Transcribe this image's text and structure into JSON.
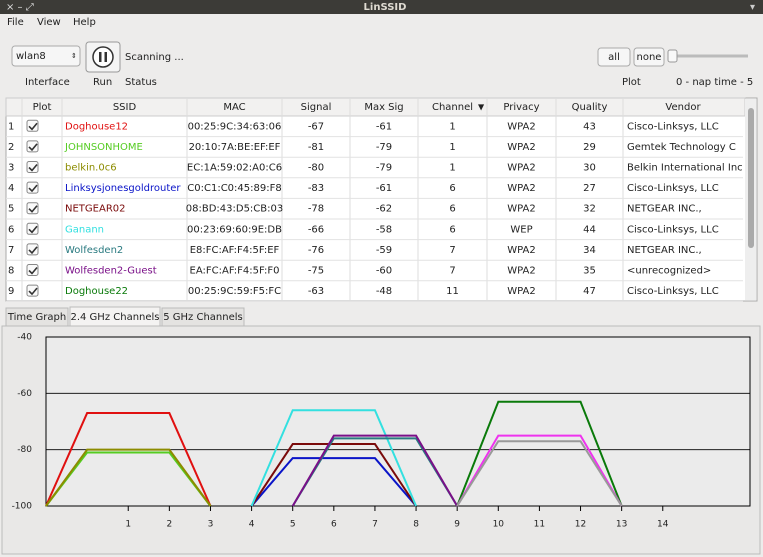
{
  "window": {
    "title": "LinSSID"
  },
  "menu": [
    "File",
    "View",
    "Help"
  ],
  "toolbar": {
    "interface": "wlan8",
    "status_text": "Scanning ...",
    "labels": [
      "Interface",
      "Run",
      "Status"
    ],
    "plot_buttons": [
      "all",
      "none"
    ],
    "plot_label": "Plot",
    "nap_label": "0 - nap time - 5"
  },
  "table": {
    "columns": [
      "Plot",
      "SSID",
      "MAC",
      "Signal",
      "Max Sig",
      "Channel",
      "Privacy",
      "Quality",
      "Vendor"
    ],
    "rows": [
      [
        1,
        "Doghouse12",
        "00:25:9C:34:63:06",
        -67,
        -61,
        1,
        "WPA2",
        43,
        "Cisco-Linksys, LLC"
      ],
      [
        2,
        "JOHNSONHOME",
        "20:10:7A:BE:EF:EF",
        -81,
        -79,
        1,
        "WPA2",
        29,
        "Gemtek Technology C"
      ],
      [
        3,
        "belkin.0c6",
        "EC:1A:59:02:A0:C6",
        -80,
        -79,
        1,
        "WPA2",
        30,
        "Belkin International Inc"
      ],
      [
        4,
        "Linksysjonesgoldrouter",
        "C0:C1:C0:45:89:F8",
        -83,
        -61,
        6,
        "WPA2",
        27,
        "Cisco-Linksys, LLC"
      ],
      [
        5,
        "NETGEAR02",
        "08:BD:43:D5:CB:03",
        -78,
        -62,
        6,
        "WPA2",
        32,
        "NETGEAR INC.,"
      ],
      [
        6,
        "Ganann",
        "00:23:69:60:9E:DB",
        -66,
        -58,
        6,
        "WEP",
        44,
        "Cisco-Linksys, LLC"
      ],
      [
        7,
        "Wolfesden2",
        "E8:FC:AF:F4:5F:EF",
        -76,
        -59,
        7,
        "WPA2",
        34,
        "NETGEAR INC.,"
      ],
      [
        8,
        "Wolfesden2-Guest",
        "EA:FC:AF:F4:5F:F0",
        -75,
        -60,
        7,
        "WPA2",
        35,
        "<unrecognized>"
      ],
      [
        9,
        "Doghouse22",
        "00:25:9C:59:F5:FC",
        -63,
        -48,
        11,
        "WPA2",
        47,
        "Cisco-Linksys, LLC"
      ]
    ]
  },
  "tabs": [
    "Time Graph",
    "2.4 GHz Channels",
    "5 GHz Channels"
  ],
  "chart_data": {
    "type": "line",
    "xlim": [
      -1,
      16
    ],
    "ylim": [
      -100,
      -40
    ],
    "xticks": [
      1,
      2,
      3,
      4,
      5,
      6,
      7,
      8,
      9,
      10,
      11,
      12,
      13,
      14
    ],
    "yticks": [
      -40,
      -60,
      -80,
      -100
    ],
    "grid": true,
    "series": [
      {
        "color": "#e01010",
        "x": [
          -1,
          0,
          2,
          3
        ],
        "values": [
          -100,
          -67,
          -67,
          -100
        ]
      },
      {
        "color": "#55cc22",
        "x": [
          -1,
          0,
          2,
          3
        ],
        "values": [
          -100,
          -81,
          -81,
          -100
        ]
      },
      {
        "color": "#8c8c00",
        "x": [
          -1,
          0,
          2,
          3
        ],
        "values": [
          -100,
          -80,
          -80,
          -100
        ]
      },
      {
        "color": "#0a14c8",
        "x": [
          4,
          5,
          7,
          8
        ],
        "values": [
          -100,
          -83,
          -83,
          -100
        ]
      },
      {
        "color": "#7a0a0a",
        "x": [
          4,
          5,
          7,
          8
        ],
        "values": [
          -100,
          -78,
          -78,
          -100
        ]
      },
      {
        "color": "#33e0e0",
        "x": [
          4,
          5,
          7,
          8
        ],
        "values": [
          -100,
          -66,
          -66,
          -100
        ]
      },
      {
        "color": "#2a7a80",
        "x": [
          5,
          6,
          8,
          9
        ],
        "values": [
          -100,
          -76,
          -76,
          -100
        ]
      },
      {
        "color": "#7a1088",
        "x": [
          5,
          6,
          8,
          9
        ],
        "values": [
          -100,
          -75,
          -75,
          -100
        ]
      },
      {
        "color": "#0a7a0a",
        "x": [
          9,
          10,
          12,
          13
        ],
        "values": [
          -100,
          -63,
          -63,
          -100
        ]
      },
      {
        "color": "#ee33ee",
        "x": [
          9,
          10,
          12,
          13
        ],
        "values": [
          -100,
          -75,
          -75,
          -100
        ]
      },
      {
        "color": "#999999",
        "x": [
          9,
          10,
          12,
          13
        ],
        "values": [
          -100,
          -77,
          -77,
          -100
        ]
      }
    ]
  }
}
